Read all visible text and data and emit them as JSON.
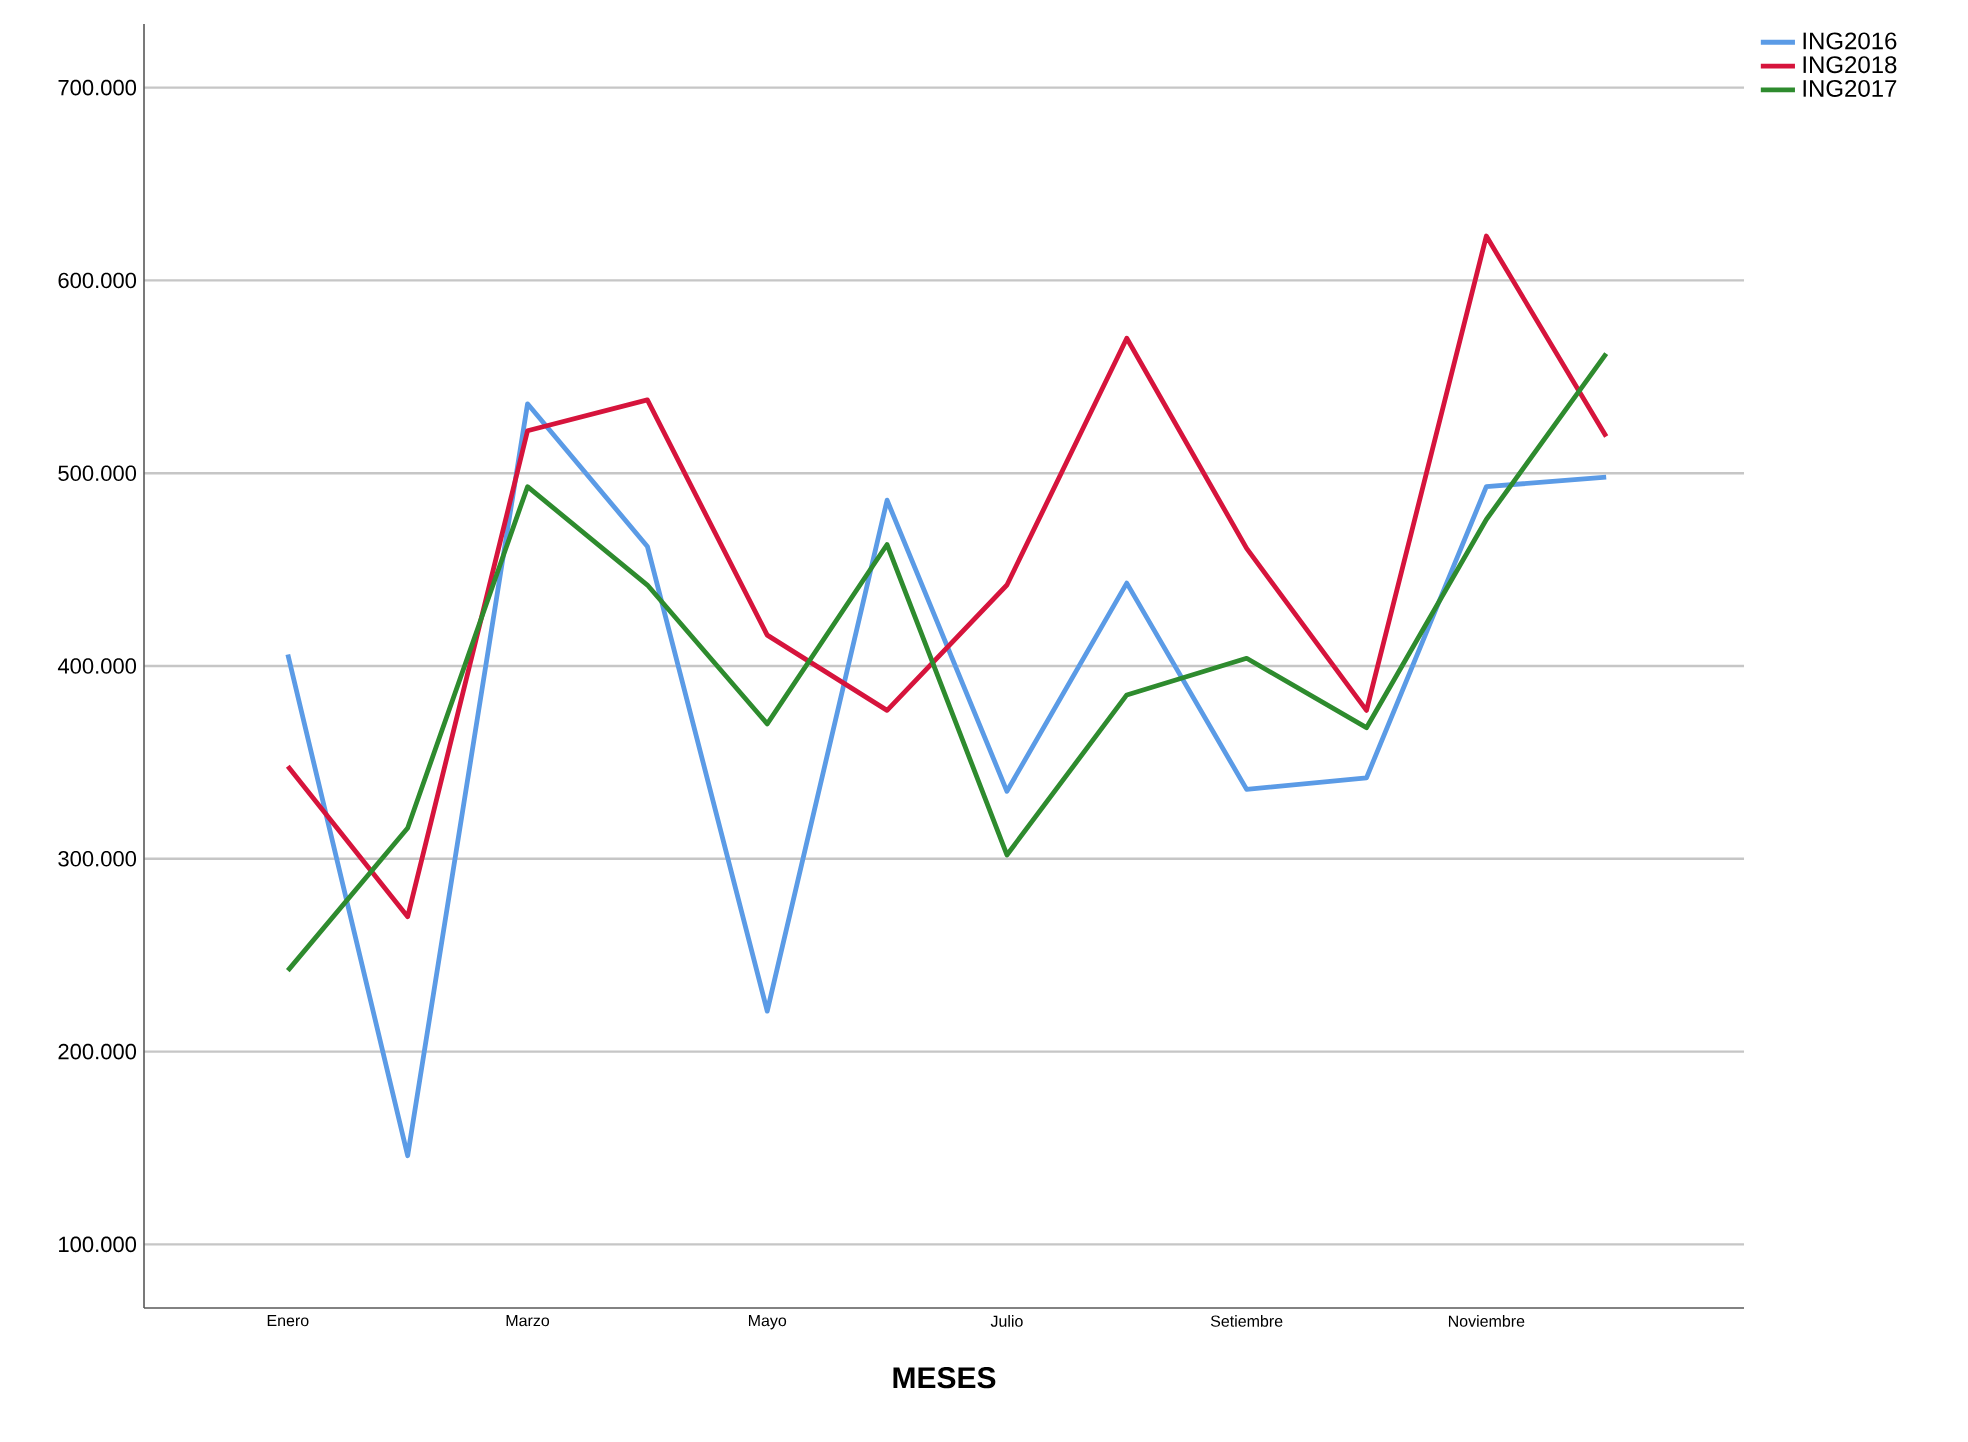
{
  "chart_data": {
    "type": "line",
    "xlabel": "MESES",
    "categories": [
      "Enero",
      null,
      "Marzo",
      null,
      "Mayo",
      null,
      "Julio",
      null,
      "Setiembre",
      null,
      "Noviembre",
      null
    ],
    "series": [
      {
        "name": "ING2016",
        "color": "#5b9be6",
        "values": [
          406000,
          146000,
          536000,
          462000,
          221000,
          486000,
          335000,
          443000,
          336000,
          342000,
          493000,
          498000
        ]
      },
      {
        "name": "ING2018",
        "color": "#d6143c",
        "values": [
          348000,
          270000,
          522000,
          538000,
          416000,
          377000,
          442000,
          570000,
          461000,
          377000,
          623000,
          519000
        ]
      },
      {
        "name": "ING2017",
        "color": "#2e8b2e",
        "values": [
          242000,
          316000,
          493000,
          442000,
          370000,
          463000,
          302000,
          385000,
          404000,
          368000,
          476000,
          562000
        ]
      }
    ],
    "ylim": [
      67000,
      733000
    ],
    "yticks": [
      {
        "value": 100000,
        "label": "100.000"
      },
      {
        "value": 200000,
        "label": "200.000"
      },
      {
        "value": 300000,
        "label": "300.000"
      },
      {
        "value": 400000,
        "label": "400.000"
      },
      {
        "value": 500000,
        "label": "500.000"
      },
      {
        "value": 600000,
        "label": "600.000"
      },
      {
        "value": 700000,
        "label": "700.000"
      }
    ],
    "grid": "y",
    "legend": "top right",
    "marker": "none",
    "line_style": "solid"
  }
}
